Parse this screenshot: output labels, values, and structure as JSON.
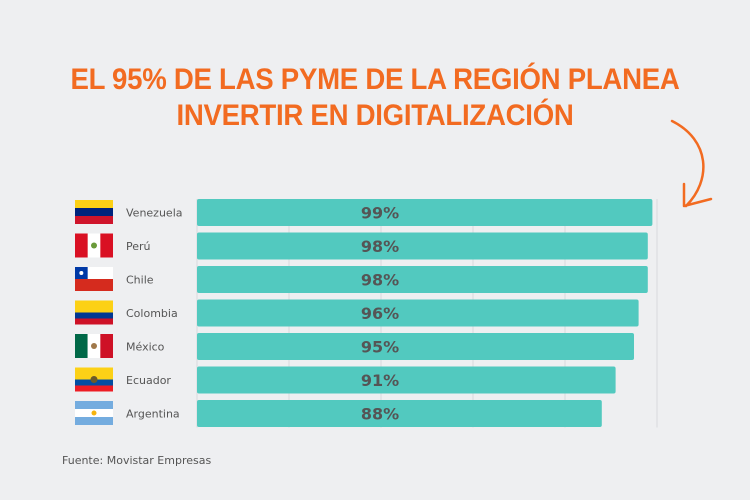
{
  "title_line1": "EL 95% DE LAS PYME DE LA REGIÓN PLANEA",
  "title_line2": "INVERTIR EN DIGITALIZACIÓN",
  "source": "Fuente: Movistar Empresas",
  "colors": {
    "title": "#f26b21",
    "bar": "#52c9bf",
    "background": "#eeeff1",
    "arrow": "#f26b21"
  },
  "chart_data": {
    "type": "bar",
    "orientation": "horizontal",
    "categories": [
      "Venezuela",
      "Perú",
      "Chile",
      "Colombia",
      "México",
      "Ecuador",
      "Argentina"
    ],
    "values": [
      99,
      98,
      98,
      96,
      95,
      91,
      88
    ],
    "data_labels": [
      "99%",
      "98%",
      "98%",
      "96%",
      "95%",
      "91%",
      "88%"
    ],
    "category_icons": [
      "flag-venezuela",
      "flag-peru",
      "flag-chile",
      "flag-colombia",
      "flag-mexico",
      "flag-ecuador",
      "flag-argentina"
    ],
    "xlim": [
      0,
      100
    ],
    "grid": true
  }
}
